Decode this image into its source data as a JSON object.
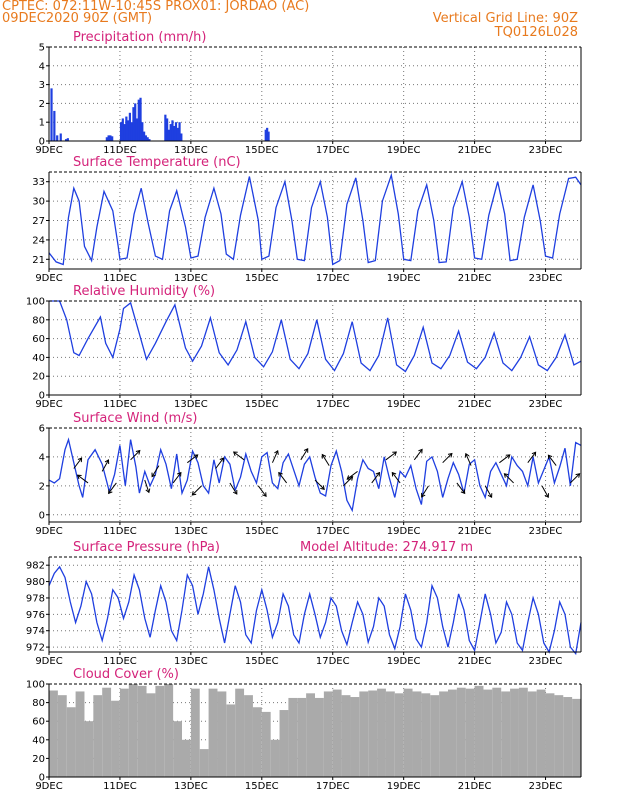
{
  "header": {
    "line1": "CPTEC:   072:11W-10:45S   PROX01: JORDAO (AC)",
    "line2": "09DEC2020 90Z (GMT)",
    "grid_note": "Vertical Grid Line: 90Z",
    "code": "TQ0126L028"
  },
  "colors": {
    "header": "#e87a1e",
    "title": "#d4237a",
    "series": "#1f3fe0",
    "cloud": "#aaaaaa"
  },
  "x_axis": {
    "day_start": 9,
    "day_end": 24,
    "tick_labels": [
      "9DEC",
      "11DEC",
      "13DEC",
      "15DEC",
      "17DEC",
      "19DEC",
      "21DEC",
      "23DEC"
    ],
    "tick_days": [
      9,
      11,
      13,
      15,
      17,
      19,
      21,
      23
    ]
  },
  "chart_data": [
    {
      "id": "precip",
      "type": "bar",
      "title": "Precipitation (mm/h)",
      "ylim": [
        0,
        5
      ],
      "yticks": [
        0,
        1,
        2,
        3,
        4,
        5
      ],
      "grid": true,
      "x": [
        9.04,
        9.12,
        9.2,
        9.3,
        9.45,
        9.5,
        10.6,
        10.65,
        10.7,
        10.75,
        11.0,
        11.05,
        11.1,
        11.15,
        11.2,
        11.25,
        11.3,
        11.35,
        11.4,
        11.45,
        11.5,
        11.55,
        11.6,
        11.65,
        11.7,
        11.75,
        11.8,
        12.25,
        12.3,
        12.35,
        12.4,
        12.45,
        12.5,
        12.55,
        12.6,
        12.65,
        12.7,
        15.08,
        15.12,
        15.16
      ],
      "values": [
        2.8,
        1.6,
        0.3,
        0.4,
        0.1,
        0.15,
        0.2,
        0.3,
        0.3,
        0.25,
        1.0,
        1.2,
        0.9,
        1.3,
        1.1,
        1.5,
        1.0,
        1.8,
        2.0,
        1.2,
        2.2,
        2.3,
        1.0,
        0.5,
        0.3,
        0.2,
        0.1,
        1.4,
        1.2,
        0.6,
        0.9,
        1.1,
        0.8,
        1.0,
        0.7,
        1.0,
        0.4,
        0.6,
        0.7,
        0.5
      ]
    },
    {
      "id": "temp",
      "type": "line",
      "title": "Surface Temperature (nC)",
      "ylim": [
        19.5,
        34.5
      ],
      "yticks": [
        21,
        24,
        27,
        30,
        33
      ],
      "grid": true,
      "x": [
        9.0,
        9.2,
        9.4,
        9.55,
        9.7,
        9.85,
        10.0,
        10.2,
        10.35,
        10.55,
        10.8,
        10.95,
        11.0,
        11.2,
        11.4,
        11.6,
        11.8,
        12.0,
        12.2,
        12.4,
        12.6,
        12.85,
        13.0,
        13.2,
        13.4,
        13.65,
        13.85,
        14.0,
        14.2,
        14.4,
        14.65,
        14.9,
        15.0,
        15.2,
        15.4,
        15.65,
        15.85,
        16.0,
        16.2,
        16.4,
        16.65,
        16.85,
        17.0,
        17.2,
        17.4,
        17.65,
        17.85,
        18.0,
        18.2,
        18.4,
        18.65,
        18.85,
        19.0,
        19.2,
        19.4,
        19.65,
        19.85,
        20.0,
        20.2,
        20.4,
        20.65,
        20.85,
        21.0,
        21.2,
        21.4,
        21.65,
        21.85,
        22.0,
        22.2,
        22.4,
        22.65,
        22.85,
        23.0,
        23.2,
        23.4,
        23.65,
        23.85,
        24.0
      ],
      "values": [
        22.0,
        20.6,
        20.2,
        27.5,
        32.0,
        30.0,
        23.0,
        20.8,
        26.0,
        31.5,
        28.5,
        23.0,
        21.0,
        21.2,
        28.0,
        32.0,
        26.5,
        21.5,
        21.0,
        28.5,
        31.6,
        26.0,
        21.2,
        21.5,
        27.5,
        32.0,
        28.0,
        21.8,
        21.0,
        27.8,
        33.8,
        27.0,
        21.0,
        21.5,
        29.0,
        33.0,
        27.0,
        21.0,
        20.8,
        29.0,
        33.0,
        27.5,
        20.2,
        20.8,
        29.5,
        33.6,
        27.0,
        20.5,
        20.8,
        30.0,
        34.0,
        28.0,
        21.0,
        20.8,
        28.5,
        32.5,
        27.0,
        20.5,
        20.6,
        29.0,
        33.0,
        27.5,
        21.2,
        21.0,
        27.8,
        33.0,
        28.0,
        20.8,
        21.0,
        27.5,
        32.5,
        27.0,
        21.5,
        21.2,
        28.0,
        33.5,
        33.7,
        32.5
      ]
    },
    {
      "id": "rh",
      "type": "line",
      "title": "Relative Humidity (%)",
      "ylim": [
        0,
        100
      ],
      "yticks": [
        0,
        20,
        40,
        60,
        80,
        100
      ],
      "grid": true,
      "x": [
        9.0,
        9.3,
        9.5,
        9.7,
        9.85,
        10.1,
        10.45,
        10.6,
        10.8,
        11.0,
        11.1,
        11.3,
        11.55,
        11.75,
        12.0,
        12.3,
        12.55,
        12.85,
        13.05,
        13.3,
        13.55,
        13.8,
        14.05,
        14.3,
        14.55,
        14.8,
        15.05,
        15.3,
        15.55,
        15.8,
        16.05,
        16.3,
        16.55,
        16.8,
        17.05,
        17.3,
        17.55,
        17.8,
        18.05,
        18.3,
        18.55,
        18.8,
        19.05,
        19.3,
        19.55,
        19.8,
        20.05,
        20.3,
        20.55,
        20.8,
        21.05,
        21.3,
        21.55,
        21.8,
        22.05,
        22.3,
        22.55,
        22.8,
        23.05,
        23.3,
        23.55,
        23.8,
        24.0
      ],
      "values": [
        100,
        100,
        80,
        45,
        42,
        60,
        83,
        55,
        40,
        70,
        92,
        98,
        65,
        38,
        55,
        78,
        96,
        50,
        36,
        52,
        82,
        45,
        32,
        48,
        78,
        40,
        30,
        46,
        80,
        38,
        28,
        44,
        80,
        38,
        26,
        44,
        78,
        34,
        26,
        42,
        82,
        32,
        25,
        42,
        72,
        34,
        28,
        42,
        68,
        35,
        28,
        40,
        66,
        34,
        26,
        40,
        62,
        32,
        26,
        40,
        64,
        32,
        36
      ]
    },
    {
      "id": "wind",
      "type": "line",
      "title": "Surface Wind (m/s)",
      "ylim": [
        -0.5,
        6
      ],
      "yticks": [
        0,
        2,
        4,
        6
      ],
      "grid": true,
      "x": [
        9.0,
        9.15,
        9.3,
        9.45,
        9.55,
        9.7,
        9.85,
        9.95,
        10.1,
        10.3,
        10.5,
        10.7,
        10.85,
        11.0,
        11.15,
        11.3,
        11.45,
        11.55,
        11.7,
        11.85,
        12.0,
        12.15,
        12.3,
        12.45,
        12.6,
        12.75,
        12.9,
        13.05,
        13.2,
        13.35,
        13.5,
        13.65,
        13.8,
        13.95,
        14.1,
        14.25,
        14.4,
        14.55,
        14.7,
        14.85,
        15.0,
        15.15,
        15.3,
        15.45,
        15.6,
        15.75,
        15.9,
        16.05,
        16.2,
        16.35,
        16.5,
        16.65,
        16.8,
        16.95,
        17.1,
        17.25,
        17.4,
        17.55,
        17.7,
        17.85,
        18.0,
        18.15,
        18.3,
        18.45,
        18.6,
        18.75,
        18.9,
        19.05,
        19.2,
        19.35,
        19.5,
        19.65,
        19.8,
        19.95,
        20.1,
        20.25,
        20.4,
        20.55,
        20.7,
        20.85,
        21.0,
        21.15,
        21.3,
        21.45,
        21.6,
        21.75,
        21.9,
        22.05,
        22.2,
        22.35,
        22.5,
        22.65,
        22.8,
        22.95,
        23.1,
        23.25,
        23.4,
        23.55,
        23.7,
        23.85,
        24.0
      ],
      "values": [
        2.4,
        2.2,
        2.5,
        4.5,
        5.2,
        3.6,
        2.0,
        1.2,
        3.8,
        4.5,
        3.5,
        1.6,
        2.8,
        4.8,
        2.0,
        5.2,
        3.3,
        1.5,
        3.0,
        2.0,
        2.8,
        4.5,
        3.5,
        1.8,
        4.2,
        1.5,
        2.4,
        4.4,
        3.6,
        2.0,
        1.5,
        3.8,
        2.2,
        4.0,
        3.5,
        1.7,
        2.6,
        4.2,
        3.0,
        2.2,
        4.0,
        4.3,
        2.2,
        1.8,
        3.6,
        4.2,
        3.1,
        2.0,
        3.5,
        4.0,
        2.6,
        1.5,
        1.3,
        3.4,
        4.4,
        3.0,
        1.0,
        0.3,
        2.5,
        3.8,
        3.2,
        3.0,
        1.8,
        4.0,
        2.5,
        1.2,
        3.0,
        2.6,
        3.4,
        1.8,
        0.7,
        3.7,
        4.0,
        3.0,
        1.2,
        2.5,
        3.6,
        2.8,
        1.5,
        3.5,
        3.8,
        2.0,
        1.2,
        3.0,
        3.6,
        2.8,
        2.0,
        4.0,
        3.4,
        3.0,
        2.0,
        4.0,
        2.2,
        3.1,
        4.0,
        2.2,
        3.3,
        4.6,
        2.0,
        5.0,
        4.8
      ]
    },
    {
      "id": "pres",
      "type": "line",
      "title": "Surface Pressure (hPa)",
      "annotation": "Model Altitude: 274.917 m",
      "ylim": [
        971.4,
        983
      ],
      "yticks": [
        972,
        974,
        976,
        978,
        980,
        982
      ],
      "grid": true,
      "x": [
        9.0,
        9.15,
        9.3,
        9.45,
        9.6,
        9.75,
        9.9,
        10.05,
        10.2,
        10.35,
        10.5,
        10.65,
        10.8,
        10.95,
        11.1,
        11.25,
        11.4,
        11.55,
        11.7,
        11.85,
        12.0,
        12.15,
        12.3,
        12.45,
        12.6,
        12.75,
        12.9,
        13.05,
        13.2,
        13.35,
        13.5,
        13.65,
        13.8,
        13.95,
        14.1,
        14.25,
        14.4,
        14.55,
        14.7,
        14.85,
        15.0,
        15.15,
        15.3,
        15.45,
        15.6,
        15.75,
        15.9,
        16.05,
        16.2,
        16.35,
        16.5,
        16.65,
        16.8,
        16.95,
        17.1,
        17.25,
        17.4,
        17.55,
        17.7,
        17.85,
        18.0,
        18.15,
        18.3,
        18.45,
        18.6,
        18.75,
        18.9,
        19.05,
        19.2,
        19.35,
        19.5,
        19.65,
        19.8,
        19.95,
        20.1,
        20.25,
        20.4,
        20.55,
        20.7,
        20.85,
        21.0,
        21.15,
        21.3,
        21.45,
        21.6,
        21.75,
        21.9,
        22.05,
        22.2,
        22.35,
        22.5,
        22.65,
        22.8,
        22.95,
        23.1,
        23.25,
        23.4,
        23.55,
        23.7,
        23.85,
        24.0
      ],
      "values": [
        979.5,
        981.0,
        981.8,
        980.5,
        977.5,
        975.0,
        977.0,
        980.0,
        978.5,
        975.0,
        972.8,
        975.5,
        979.0,
        978.0,
        975.5,
        977.5,
        980.8,
        979.0,
        975.5,
        973.2,
        976.5,
        979.5,
        977.5,
        974.0,
        972.8,
        976.5,
        980.8,
        979.5,
        976.0,
        978.5,
        981.8,
        979.0,
        975.5,
        972.5,
        976.0,
        979.5,
        977.5,
        973.5,
        972.5,
        976.5,
        979.0,
        976.5,
        973.2,
        975.0,
        978.5,
        977.0,
        973.5,
        972.5,
        976.0,
        978.5,
        976.0,
        973.2,
        975.0,
        978.0,
        977.0,
        974.0,
        972.3,
        975.0,
        977.5,
        976.0,
        972.6,
        974.5,
        978.0,
        977.0,
        973.5,
        971.8,
        974.5,
        978.5,
        976.5,
        973.0,
        972.0,
        975.0,
        979.5,
        978.0,
        974.5,
        972.0,
        975.0,
        978.5,
        976.5,
        972.8,
        971.6,
        975.0,
        978.5,
        976.0,
        972.5,
        973.8,
        977.5,
        976.0,
        972.5,
        971.6,
        975.0,
        978.0,
        976.0,
        972.5,
        971.4,
        974.0,
        977.5,
        976.0,
        972.0,
        971.2,
        975.0
      ]
    },
    {
      "id": "cloud",
      "type": "bar",
      "title": "Cloud Cover (%)",
      "ylim": [
        0,
        100
      ],
      "yticks": [
        0,
        20,
        40,
        60,
        80,
        100
      ],
      "grid": true,
      "x": [
        9.0,
        9.25,
        9.5,
        9.75,
        10.0,
        10.25,
        10.5,
        10.75,
        11.0,
        11.25,
        11.5,
        11.75,
        12.0,
        12.25,
        12.5,
        12.75,
        13.0,
        13.25,
        13.5,
        13.75,
        14.0,
        14.25,
        14.5,
        14.75,
        15.0,
        15.25,
        15.5,
        15.75,
        16.0,
        16.25,
        16.5,
        16.75,
        17.0,
        17.25,
        17.5,
        17.75,
        18.0,
        18.25,
        18.5,
        18.75,
        19.0,
        19.25,
        19.5,
        19.75,
        20.0,
        20.25,
        20.5,
        20.75,
        21.0,
        21.25,
        21.5,
        21.75,
        22.0,
        22.25,
        22.5,
        22.75,
        23.0,
        23.25,
        23.5,
        23.75
      ],
      "values": [
        93,
        88,
        75,
        92,
        60,
        88,
        96,
        82,
        95,
        100,
        98,
        90,
        98,
        100,
        60,
        40,
        95,
        30,
        95,
        92,
        78,
        95,
        88,
        75,
        70,
        40,
        72,
        85,
        85,
        90,
        85,
        92,
        94,
        88,
        86,
        92,
        93,
        95,
        92,
        90,
        95,
        92,
        90,
        88,
        92,
        94,
        96,
        95,
        98,
        94,
        96,
        92,
        95,
        96,
        92,
        94,
        90,
        88,
        86,
        84
      ]
    }
  ],
  "wind_vectors": {
    "x": [
      9.7,
      10.1,
      10.5,
      10.9,
      11.3,
      11.7,
      12.1,
      12.5,
      12.9,
      13.3,
      13.7,
      14.1,
      14.5,
      14.9,
      15.3,
      15.7,
      16.1,
      16.5,
      16.9,
      17.3,
      17.7,
      18.1,
      18.5,
      18.9,
      19.3,
      19.7,
      20.1,
      20.5,
      20.9,
      21.3,
      21.7,
      22.1,
      22.5,
      22.9,
      23.3,
      23.7
    ],
    "speed": [
      3.2,
      2.2,
      3.0,
      2.2,
      3.8,
      2.4,
      3.4,
      2.2,
      3.6,
      2.0,
      3.2,
      2.2,
      3.8,
      2.0,
      3.6,
      2.2,
      3.8,
      2.4,
      3.4,
      2.0,
      3.0,
      2.2,
      3.8,
      2.2,
      3.8,
      2.0,
      3.6,
      2.2,
      3.4,
      2.0,
      3.6,
      2.2,
      3.6,
      2.0,
      3.4,
      2.2
    ],
    "u": [
      0.6,
      -0.8,
      0.5,
      -0.6,
      0.7,
      0.3,
      -0.5,
      0.6,
      0.8,
      -0.7,
      0.6,
      0.5,
      -0.8,
      0.6,
      0.4,
      -0.6,
      0.5,
      0.7,
      -0.5,
      0.7,
      -0.8,
      0.6,
      0.8,
      -0.6,
      0.6,
      -0.5,
      0.7,
      0.6,
      -0.4,
      0.5,
      0.8,
      -0.7,
      0.6,
      0.5,
      -0.6,
      0.7
    ],
    "v": [
      0.8,
      0.6,
      0.9,
      -0.8,
      0.7,
      -0.9,
      -0.8,
      0.8,
      0.6,
      -0.7,
      0.8,
      -0.8,
      0.6,
      -0.8,
      0.9,
      0.8,
      0.8,
      -0.7,
      0.8,
      0.7,
      -0.6,
      0.8,
      0.6,
      0.8,
      0.8,
      -0.8,
      0.7,
      -0.8,
      0.9,
      -0.9,
      0.6,
      0.7,
      0.8,
      -0.9,
      0.8,
      0.7
    ]
  }
}
